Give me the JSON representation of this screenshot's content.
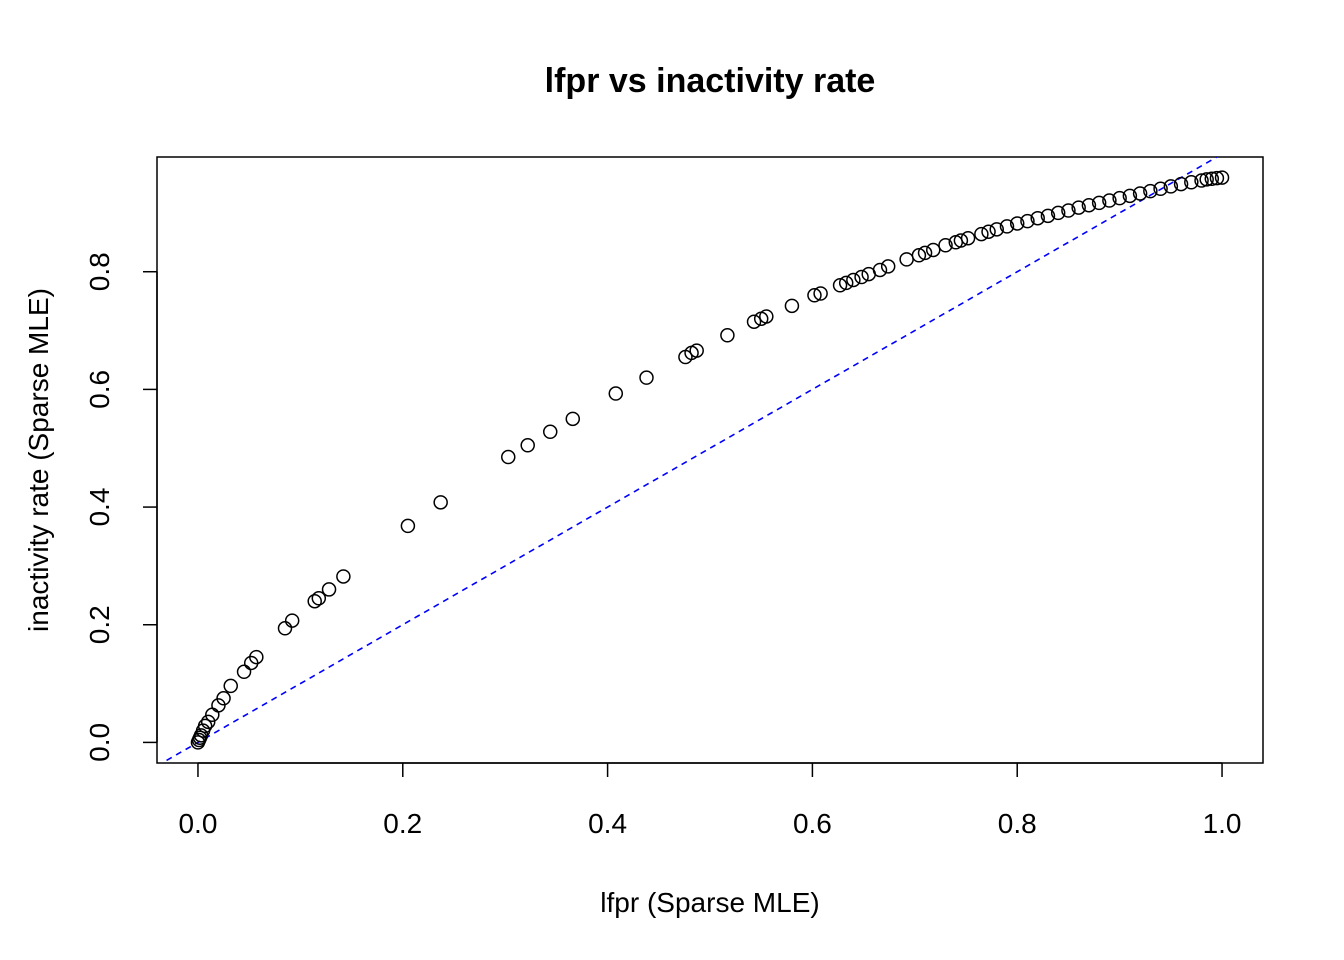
{
  "chart_data": {
    "type": "scatter",
    "title": "lfpr vs inactivity rate",
    "xlabel": "lfpr (Sparse MLE)",
    "ylabel": "inactivity rate (Sparse MLE)",
    "xlim": [
      -0.04,
      1.04
    ],
    "ylim": [
      -0.035,
      0.995
    ],
    "xticks": [
      0.0,
      0.2,
      0.4,
      0.6,
      0.8,
      1.0
    ],
    "xtick_labels": [
      "0.0",
      "0.2",
      "0.4",
      "0.6",
      "0.8",
      "1.0"
    ],
    "yticks": [
      0.0,
      0.2,
      0.4,
      0.6,
      0.8
    ],
    "ytick_labels": [
      "0.0",
      "0.2",
      "0.4",
      "0.6",
      "0.8"
    ],
    "grid": false,
    "marker": "open-circle",
    "reference_line": {
      "kind": "y=x",
      "style": "dashed",
      "color": "#0000ff"
    },
    "series": [
      {
        "points": [
          [
            0.0,
            0.0
          ],
          [
            0.001,
            0.004
          ],
          [
            0.002,
            0.008
          ],
          [
            0.003,
            0.012
          ],
          [
            0.005,
            0.02
          ],
          [
            0.007,
            0.028
          ],
          [
            0.01,
            0.035
          ],
          [
            0.014,
            0.047
          ],
          [
            0.02,
            0.063
          ],
          [
            0.025,
            0.075
          ],
          [
            0.032,
            0.096
          ],
          [
            0.045,
            0.12
          ],
          [
            0.052,
            0.135
          ],
          [
            0.057,
            0.145
          ],
          [
            0.085,
            0.194
          ],
          [
            0.092,
            0.207
          ],
          [
            0.114,
            0.24
          ],
          [
            0.118,
            0.245
          ],
          [
            0.128,
            0.26
          ],
          [
            0.142,
            0.282
          ],
          [
            0.205,
            0.368
          ],
          [
            0.237,
            0.408
          ],
          [
            0.303,
            0.485
          ],
          [
            0.322,
            0.505
          ],
          [
            0.344,
            0.528
          ],
          [
            0.366,
            0.55
          ],
          [
            0.408,
            0.593
          ],
          [
            0.438,
            0.62
          ],
          [
            0.476,
            0.655
          ],
          [
            0.482,
            0.662
          ],
          [
            0.487,
            0.666
          ],
          [
            0.517,
            0.692
          ],
          [
            0.543,
            0.715
          ],
          [
            0.55,
            0.72
          ],
          [
            0.555,
            0.724
          ],
          [
            0.58,
            0.742
          ],
          [
            0.602,
            0.76
          ],
          [
            0.608,
            0.763
          ],
          [
            0.627,
            0.777
          ],
          [
            0.633,
            0.781
          ],
          [
            0.64,
            0.786
          ],
          [
            0.648,
            0.791
          ],
          [
            0.655,
            0.796
          ],
          [
            0.666,
            0.803
          ],
          [
            0.674,
            0.809
          ],
          [
            0.692,
            0.821
          ],
          [
            0.704,
            0.828
          ],
          [
            0.71,
            0.832
          ],
          [
            0.718,
            0.837
          ],
          [
            0.73,
            0.845
          ],
          [
            0.74,
            0.85
          ],
          [
            0.745,
            0.853
          ],
          [
            0.752,
            0.857
          ],
          [
            0.765,
            0.864
          ],
          [
            0.772,
            0.868
          ],
          [
            0.78,
            0.872
          ],
          [
            0.79,
            0.877
          ],
          [
            0.8,
            0.882
          ],
          [
            0.81,
            0.886
          ],
          [
            0.82,
            0.891
          ],
          [
            0.83,
            0.895
          ],
          [
            0.84,
            0.9
          ],
          [
            0.85,
            0.904
          ],
          [
            0.86,
            0.909
          ],
          [
            0.87,
            0.913
          ],
          [
            0.88,
            0.917
          ],
          [
            0.89,
            0.921
          ],
          [
            0.9,
            0.925
          ],
          [
            0.91,
            0.929
          ],
          [
            0.92,
            0.933
          ],
          [
            0.93,
            0.937
          ],
          [
            0.94,
            0.941
          ],
          [
            0.95,
            0.945
          ],
          [
            0.96,
            0.949
          ],
          [
            0.97,
            0.952
          ],
          [
            0.98,
            0.955
          ],
          [
            0.985,
            0.957
          ],
          [
            0.99,
            0.958
          ],
          [
            0.995,
            0.959
          ],
          [
            1.0,
            0.96
          ]
        ]
      }
    ]
  }
}
